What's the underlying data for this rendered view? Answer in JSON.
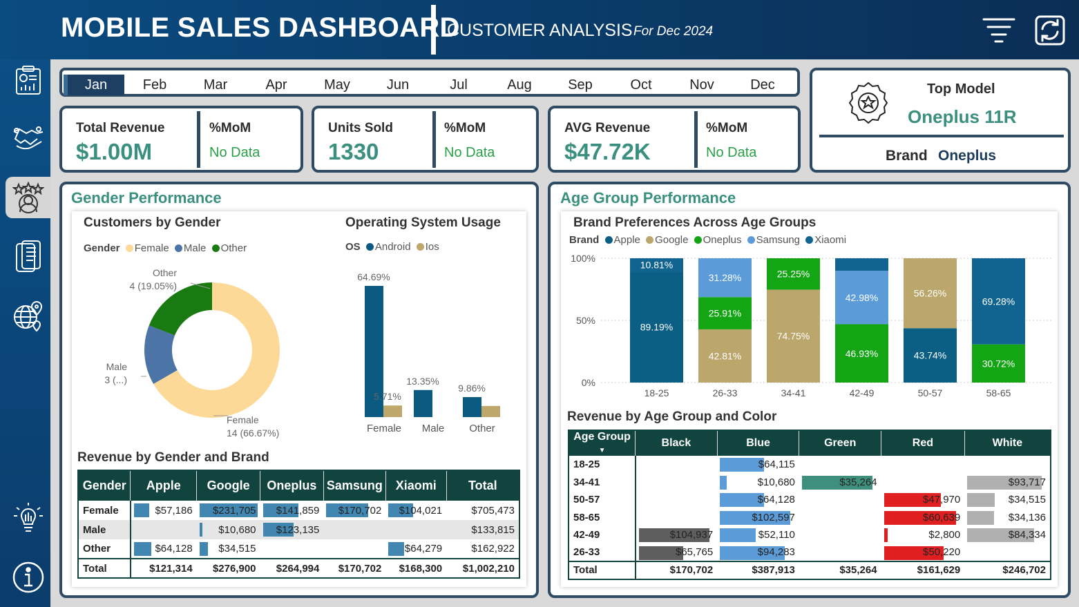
{
  "header": {
    "title": "MOBILE SALES DASHBOARD",
    "subtitle": "CUSTOMER ANALYSIS",
    "period": "For Dec 2024",
    "filter_icon": "filter-icon",
    "refresh_icon": "refresh-icon"
  },
  "sidebar": {
    "items": [
      {
        "icon": "report-chart-icon"
      },
      {
        "icon": "handshake-icon"
      },
      {
        "icon": "customer-rating-icon",
        "active": true
      },
      {
        "icon": "mobile-device-icon"
      },
      {
        "icon": "globe-location-icon"
      },
      {
        "icon": "lightbulb-icon"
      },
      {
        "icon": "info-icon"
      }
    ]
  },
  "months": {
    "items": [
      "Jan",
      "Feb",
      "Mar",
      "Apr",
      "May",
      "Jun",
      "Jul",
      "Aug",
      "Sep",
      "Oct",
      "Nov",
      "Dec"
    ],
    "selected": "Jan"
  },
  "kpis": {
    "revenue": {
      "label": "Total Revenue",
      "value": "$1.00M",
      "mom_label": "%MoM",
      "mom_value": "No Data"
    },
    "units": {
      "label": "Units Sold",
      "value": "1330",
      "mom_label": "%MoM",
      "mom_value": "No Data"
    },
    "avg": {
      "label": "AVG Revenue",
      "value": "$47.72K",
      "mom_label": "%MoM",
      "mom_value": "No Data"
    }
  },
  "top_model": {
    "label": "Top Model",
    "value": "Oneplus 11R",
    "brand_label": "Brand",
    "brand_value": "Oneplus",
    "icon": "award-badge-icon"
  },
  "gender_section": {
    "title": "Gender Performance",
    "donut_title": "Customers by Gender",
    "donut_legend_title": "Gender",
    "os_title": "Operating System Usage",
    "os_legend_title": "OS",
    "table_title": "Revenue by Gender and Brand"
  },
  "age_section": {
    "title": "Age Group Performance",
    "chart_title": "Brand Preferences Across Age Groups",
    "legend_title": "Brand",
    "table_title": "Revenue by Age Group and Color"
  },
  "colors": {
    "female": "#fdd997",
    "male": "#4c74a6",
    "other": "#1a7a12",
    "android": "#0a5a82",
    "ios": "#bfa76b",
    "apple": "#0b5e84",
    "google": "#bba66c",
    "oneplus": "#14a514",
    "samsung": "#5b9bd8",
    "xiaomi": "#11648f"
  },
  "chart_data": [
    {
      "type": "pie",
      "title": "Customers by Gender",
      "categories": [
        "Female",
        "Male",
        "Other"
      ],
      "values": [
        14,
        3,
        4
      ],
      "labels": [
        "14 (66.67%)",
        "3 (...)",
        "4 (19.05%)"
      ]
    },
    {
      "type": "bar",
      "title": "Operating System Usage",
      "categories": [
        "Female",
        "Male",
        "Other"
      ],
      "series": [
        {
          "name": "Android",
          "values": [
            64.69,
            13.35,
            9.86
          ],
          "labels": [
            "64.69%",
            "13.35%",
            "9.86%"
          ]
        },
        {
          "name": "Ios",
          "values": [
            5.71,
            0,
            5.5
          ],
          "labels": [
            "5.71%",
            "",
            ""
          ]
        }
      ]
    },
    {
      "type": "bar",
      "title": "Brand Preferences Across Age Groups",
      "categories": [
        "18-25",
        "26-33",
        "34-41",
        "42-49",
        "50-57",
        "58-65"
      ],
      "yticks": [
        "0%",
        "50%",
        "100%"
      ],
      "series": [
        {
          "name": "Apple",
          "values": [
            89.19,
            0,
            0,
            0,
            43.74,
            0
          ],
          "labels": [
            "89.19%",
            "",
            "",
            "",
            "43.74%",
            ""
          ]
        },
        {
          "name": "Google",
          "values": [
            0,
            42.81,
            74.75,
            0,
            56.26,
            0
          ],
          "labels": [
            "",
            "42.81%",
            "74.75%",
            "",
            "56.26%",
            ""
          ]
        },
        {
          "name": "Oneplus",
          "values": [
            0,
            25.91,
            25.25,
            46.93,
            0,
            30.72
          ],
          "labels": [
            "",
            "25.91%",
            "25.25%",
            "46.93%",
            "",
            "30.72%"
          ]
        },
        {
          "name": "Samsung",
          "values": [
            0,
            31.28,
            0,
            42.98,
            0,
            0
          ],
          "labels": [
            "",
            "31.28%",
            "",
            "42.98%",
            "",
            ""
          ]
        },
        {
          "name": "Xiaomi",
          "values": [
            10.81,
            0,
            0,
            10.09,
            0,
            69.28
          ],
          "labels": [
            "10.81%",
            "",
            "",
            "",
            "",
            "69.28%"
          ]
        }
      ]
    }
  ],
  "gender_table": {
    "headers": [
      "Gender",
      "Apple",
      "Google",
      "Oneplus",
      "Samsung",
      "Xiaomi",
      "Total"
    ],
    "rows": [
      {
        "cells": [
          "Female",
          "$57,186",
          "$231,705",
          "$141,859",
          "$170,702",
          "$104,021",
          "$705,473"
        ],
        "bars": [
          0.25,
          1.0,
          0.61,
          0.74,
          0.45
        ]
      },
      {
        "cells": [
          "Male",
          "",
          "$10,680",
          "$123,135",
          "",
          "",
          "$133,815"
        ],
        "bars": [
          0,
          0.05,
          0.53,
          0,
          0
        ]
      },
      {
        "cells": [
          "Other",
          "$64,128",
          "$34,515",
          "",
          "",
          "$64,279",
          "$162,922"
        ],
        "bars": [
          0.28,
          0.15,
          0,
          0,
          0.28
        ]
      },
      {
        "cells": [
          "Total",
          "$121,314",
          "$276,900",
          "$264,994",
          "$170,702",
          "$168,300",
          "$1,002,210"
        ],
        "bars": [
          0,
          0,
          0,
          0,
          0
        ]
      }
    ]
  },
  "age_table": {
    "headers": [
      "Age Group",
      "Black",
      "Blue",
      "Green",
      "Red",
      "White"
    ],
    "rows": [
      {
        "cells": [
          "18-25",
          "",
          "$64,115",
          "",
          "",
          ""
        ],
        "bars": [
          0,
          0.63,
          0,
          0,
          0
        ]
      },
      {
        "cells": [
          "34-41",
          "",
          "$10,680",
          "$35,264",
          "",
          "$93,717"
        ],
        "bars": [
          0,
          0.1,
          1.0,
          0,
          1.0
        ]
      },
      {
        "cells": [
          "50-57",
          "",
          "$64,128",
          "",
          "$47,970",
          "$34,515"
        ],
        "bars": [
          0,
          0.63,
          0,
          0.79,
          0.37
        ]
      },
      {
        "cells": [
          "58-65",
          "",
          "$102,597",
          "",
          "$60,639",
          "$34,136"
        ],
        "bars": [
          0,
          1.0,
          0,
          1.0,
          0.36
        ]
      },
      {
        "cells": [
          "42-49",
          "$104,937",
          "$52,110",
          "",
          "$2,800",
          "$84,334"
        ],
        "bars": [
          1.0,
          0.51,
          0,
          0.05,
          0.9
        ]
      },
      {
        "cells": [
          "26-33",
          "$65,765",
          "$94,283",
          "",
          "$50,220",
          ""
        ],
        "bars": [
          0.63,
          0.92,
          0,
          0.83,
          0
        ]
      },
      {
        "cells": [
          "Total",
          "$170,702",
          "$387,913",
          "$35,264",
          "$161,629",
          "$246,702"
        ],
        "bars": [
          0,
          0,
          0,
          0,
          0
        ]
      }
    ],
    "bar_colors": [
      "#5e5e5e",
      "#5b9bd8",
      "#3e8f7e",
      "#e02020",
      "#b0b0b0"
    ]
  }
}
